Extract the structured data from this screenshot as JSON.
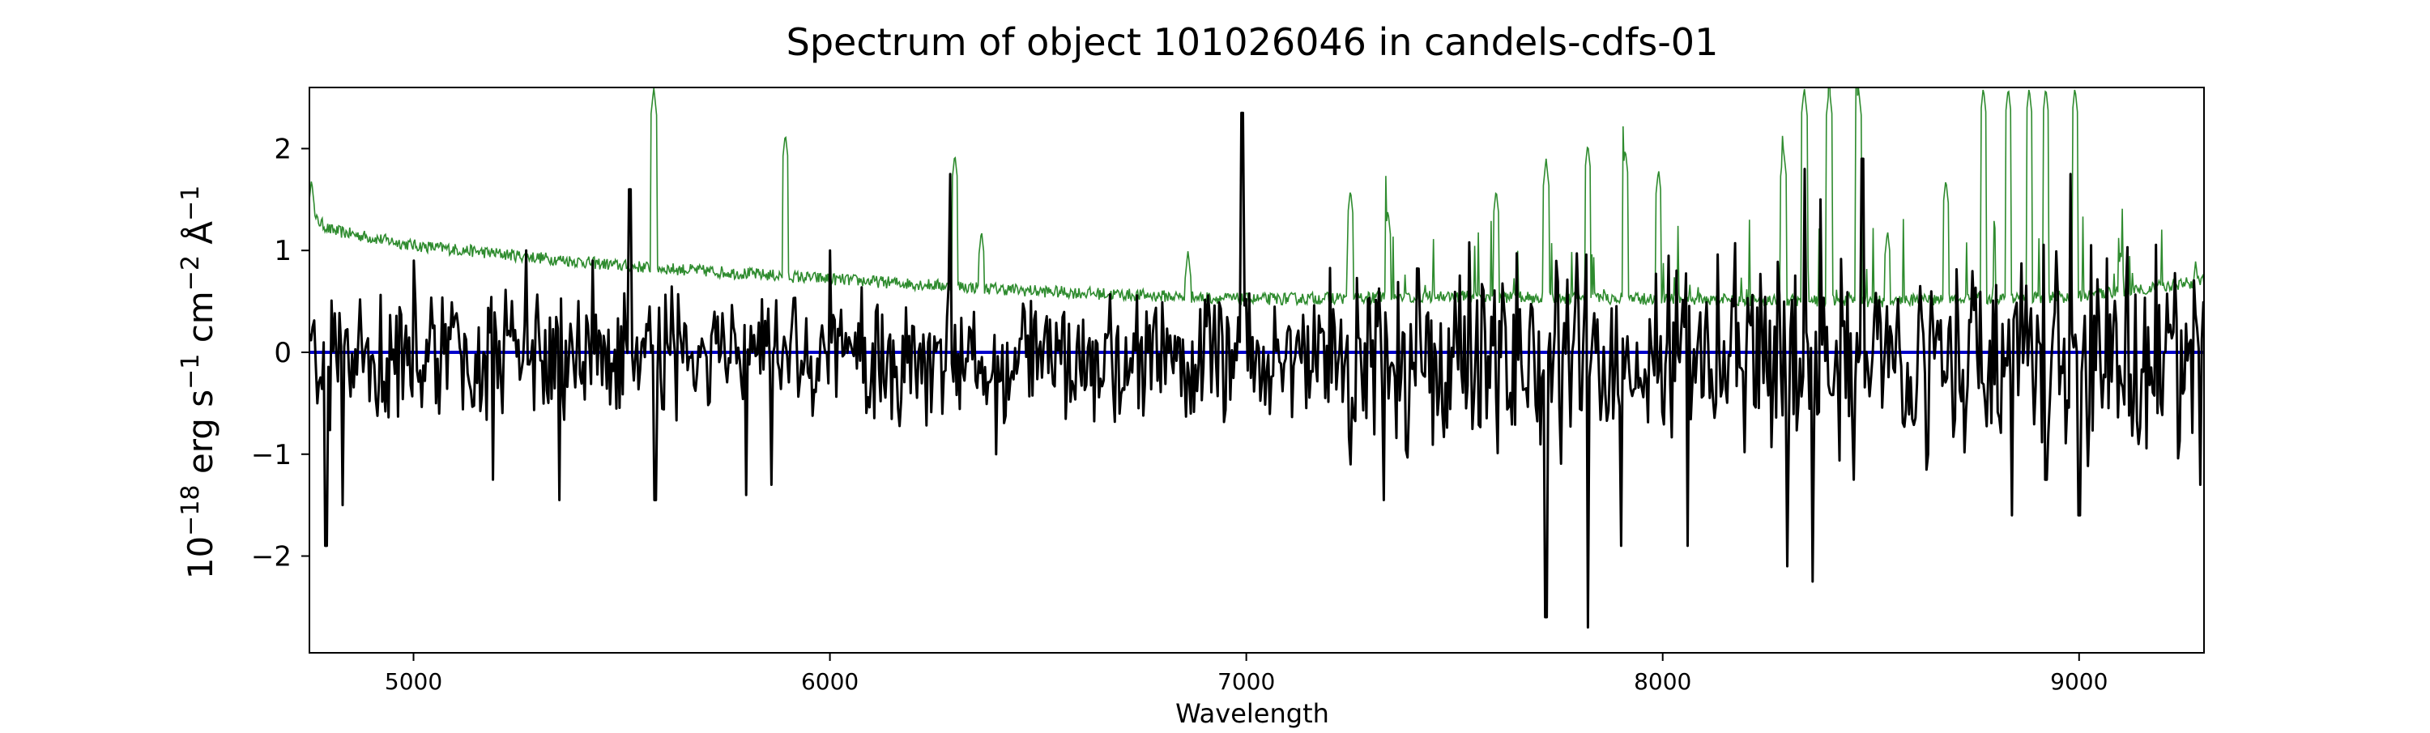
{
  "chart_data": {
    "type": "line",
    "title": "Spectrum of object 101026046 in candels-cdfs-01",
    "xlabel": "Wavelength",
    "ylabel_parts": [
      "10",
      "−18",
      " erg s",
      "−1",
      " cm",
      "−2",
      " Å",
      "−1"
    ],
    "xlim": [
      4750,
      9300
    ],
    "ylim": [
      -2.95,
      2.6
    ],
    "xticks": [
      5000,
      6000,
      7000,
      8000,
      9000
    ],
    "yticks": [
      -2,
      -1,
      0,
      1,
      2
    ],
    "ytick_labels": [
      "−2",
      "−1",
      "0",
      "1",
      "2"
    ],
    "grid": false,
    "series": [
      {
        "role": "noise",
        "color": "#2e8b2e",
        "continuum": [
          [
            4750,
            1.35
          ],
          [
            4800,
            1.2
          ],
          [
            5000,
            1.05
          ],
          [
            5500,
            0.85
          ],
          [
            6000,
            0.72
          ],
          [
            6500,
            0.6
          ],
          [
            7000,
            0.52
          ],
          [
            7500,
            0.55
          ],
          [
            8000,
            0.52
          ],
          [
            8500,
            0.5
          ],
          [
            9000,
            0.55
          ],
          [
            9300,
            0.7
          ]
        ],
        "peaks": [
          [
            4755,
            1.7
          ],
          [
            5577,
            2.6
          ],
          [
            5893,
            2.15
          ],
          [
            6300,
            1.95
          ],
          [
            6364,
            1.2
          ],
          [
            6860,
            1.0
          ],
          [
            7250,
            1.6
          ],
          [
            7340,
            1.4
          ],
          [
            7600,
            1.6
          ],
          [
            7720,
            1.9
          ],
          [
            7820,
            2.05
          ],
          [
            7910,
            2.0
          ],
          [
            7990,
            1.8
          ],
          [
            8290,
            2.0
          ],
          [
            8340,
            2.6
          ],
          [
            8400,
            2.6
          ],
          [
            8470,
            2.6
          ],
          [
            8540,
            1.2
          ],
          [
            8680,
            1.7
          ],
          [
            8770,
            2.6
          ],
          [
            8830,
            2.6
          ],
          [
            8880,
            2.6
          ],
          [
            8920,
            2.6
          ],
          [
            8990,
            2.6
          ],
          [
            9100,
            1.0
          ],
          [
            9280,
            0.9
          ]
        ]
      },
      {
        "role": "flux",
        "color": "#000000",
        "baseline": -0.05,
        "features": [
          [
            4770,
            -0.5
          ],
          [
            4790,
            -1.9
          ],
          [
            4830,
            -1.5
          ],
          [
            5000,
            0.9
          ],
          [
            5190,
            -1.25
          ],
          [
            5270,
            1.0
          ],
          [
            5350,
            -1.45
          ],
          [
            5430,
            0.9
          ],
          [
            5520,
            1.6
          ],
          [
            5580,
            -1.45
          ],
          [
            5800,
            -1.4
          ],
          [
            5860,
            -1.3
          ],
          [
            6000,
            1.0
          ],
          [
            6290,
            1.75
          ],
          [
            6400,
            -1.0
          ],
          [
            6990,
            2.35
          ],
          [
            7250,
            -1.1
          ],
          [
            7330,
            -1.45
          ],
          [
            7720,
            -2.6
          ],
          [
            7820,
            -2.7
          ],
          [
            7900,
            -1.9
          ],
          [
            8060,
            -1.9
          ],
          [
            8300,
            -2.1
          ],
          [
            8340,
            1.8
          ],
          [
            8360,
            -2.25
          ],
          [
            8380,
            1.5
          ],
          [
            8460,
            -1.25
          ],
          [
            8480,
            1.9
          ],
          [
            8840,
            -1.6
          ],
          [
            8920,
            -1.25
          ],
          [
            8980,
            1.75
          ],
          [
            9000,
            -1.6
          ],
          [
            9290,
            -1.3
          ],
          [
            9300,
            0.5
          ]
        ]
      },
      {
        "role": "zero-line",
        "color": "#0000cc",
        "value": 0.0
      }
    ]
  }
}
